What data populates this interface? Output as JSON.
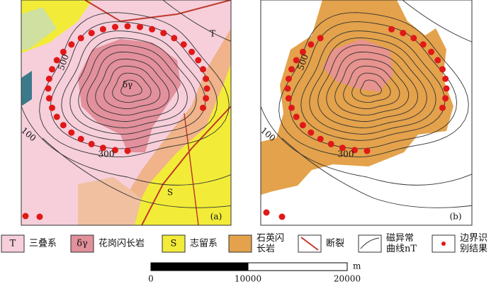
{
  "panels": [
    {
      "label": "(a)",
      "contours": [
        "500",
        "300",
        "100"
      ],
      "units": [
        "T",
        "S",
        "δγ"
      ]
    },
    {
      "label": "(b)",
      "contours": [
        "500",
        "300",
        "100"
      ]
    }
  ],
  "legend": [
    {
      "symbol": "T",
      "lines": [
        "三叠系"
      ]
    },
    {
      "symbol": "δγ",
      "lines": [
        "花岗闪长岩"
      ]
    },
    {
      "symbol": "S",
      "lines": [
        "志留系"
      ]
    },
    {
      "lines": [
        "石英闪",
        "长岩"
      ]
    },
    {
      "lines": [
        "断裂"
      ]
    },
    {
      "lines": [
        "磁异常",
        "曲线nT"
      ]
    },
    {
      "lines": [
        "边界识",
        "别结果"
      ]
    }
  ],
  "scale_bar": {
    "unit": "m",
    "labels": [
      "0",
      "10000",
      "20000"
    ]
  }
}
